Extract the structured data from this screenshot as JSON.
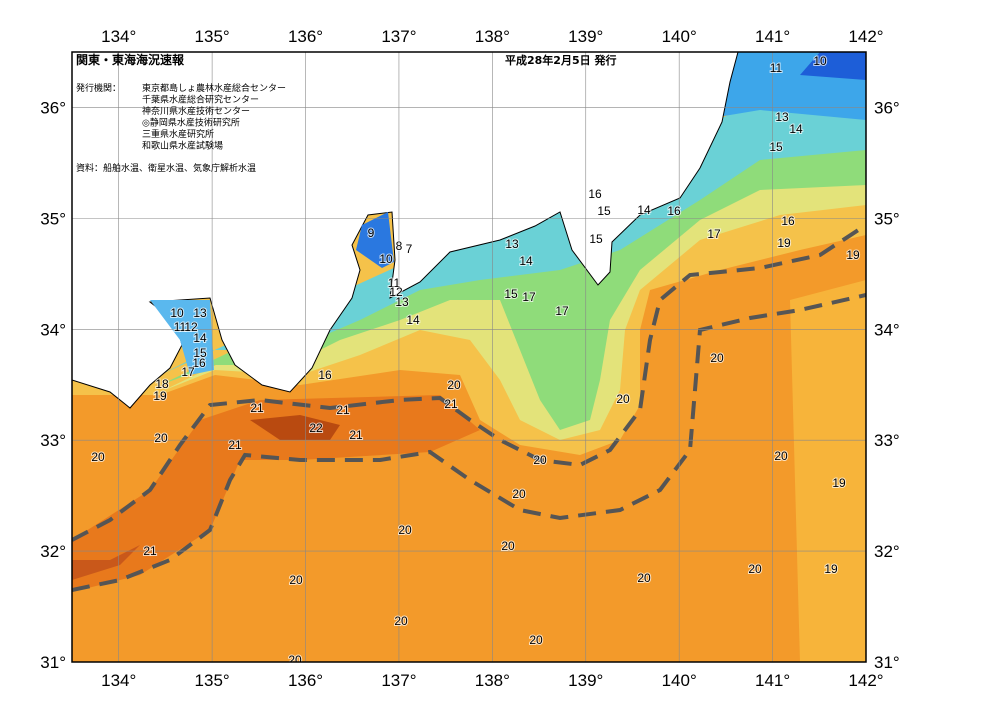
{
  "header": {
    "title": "関東・東海海況速報",
    "date": "平成28年2月5日 発行"
  },
  "agencies": {
    "label": "発行機関：",
    "list": [
      "東京都島しょ農林水産総合センター",
      "千葉県水産総合研究センター",
      "神奈川県水産技術センター",
      "◎静岡県水産技術研究所",
      "三重県水産研究所",
      "和歌山県水産試験場"
    ]
  },
  "source": "資料：船舶水温、衛星水温、気象庁解析水温",
  "axes": {
    "lon_range": [
      133.5,
      142
    ],
    "lat_range": [
      31,
      36.5
    ],
    "lon_ticks": [
      {
        "value": 134,
        "label": "134°"
      },
      {
        "value": 135,
        "label": "135°"
      },
      {
        "value": 136,
        "label": "136°"
      },
      {
        "value": 137,
        "label": "137°"
      },
      {
        "value": 138,
        "label": "138°"
      },
      {
        "value": 139,
        "label": "139°"
      },
      {
        "value": 140,
        "label": "140°"
      },
      {
        "value": 141,
        "label": "141°"
      },
      {
        "value": 142,
        "label": "142°"
      }
    ],
    "lat_ticks": [
      {
        "value": 31,
        "label": "31°"
      },
      {
        "value": 32,
        "label": "32°"
      },
      {
        "value": 33,
        "label": "33°"
      },
      {
        "value": 34,
        "label": "34°"
      },
      {
        "value": 35,
        "label": "35°"
      },
      {
        "value": 36,
        "label": "36°"
      }
    ]
  },
  "contour_labels": [
    11,
    10,
    13,
    14,
    15,
    16,
    15,
    14,
    16,
    16,
    17,
    19,
    19,
    9,
    8,
    7,
    10,
    13,
    14,
    15,
    15,
    17,
    17,
    11,
    12,
    13,
    14,
    10,
    13,
    11,
    12,
    14,
    15,
    16,
    17,
    16,
    18,
    19,
    20,
    21,
    21,
    21,
    22,
    21,
    21,
    20,
    20,
    20,
    20,
    20,
    20,
    20,
    19,
    20,
    20,
    21,
    20,
    20,
    20,
    19,
    20,
    20,
    20
  ]
}
